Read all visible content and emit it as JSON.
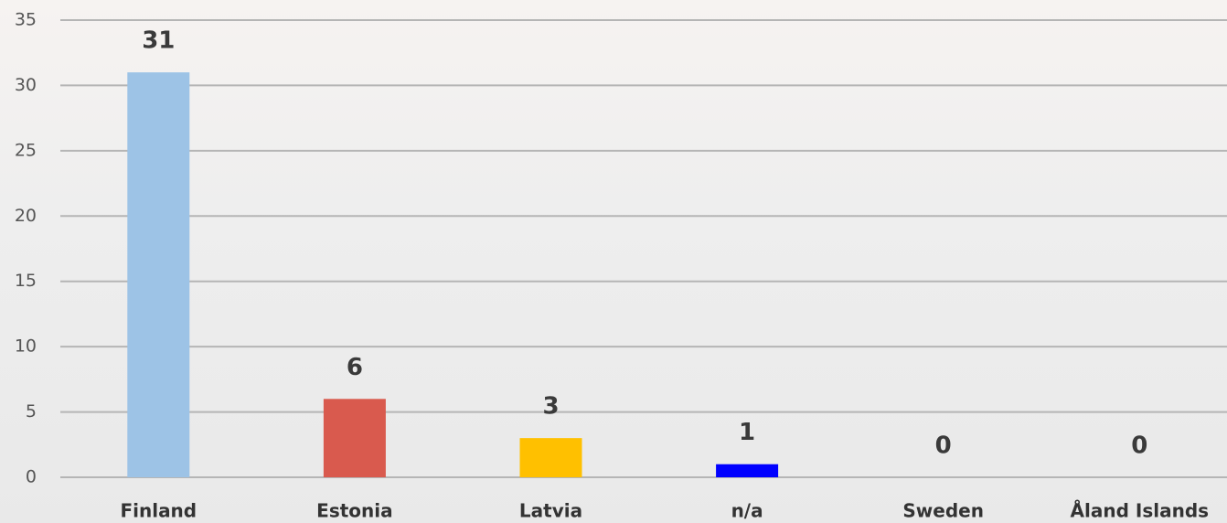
{
  "chart_data": {
    "type": "bar",
    "categories": [
      "Finland",
      "Estonia",
      "Latvia",
      "n/a",
      "Sweden",
      "Åland Islands"
    ],
    "values": [
      31,
      6,
      3,
      1,
      0,
      0
    ],
    "colors": [
      "#9dc3e6",
      "#d95a4e",
      "#ffc000",
      "#0000ff"
    ],
    "ylim": [
      0,
      35
    ],
    "yticks": [
      0,
      5,
      10,
      15,
      20,
      25,
      30,
      35
    ],
    "grid": true
  }
}
